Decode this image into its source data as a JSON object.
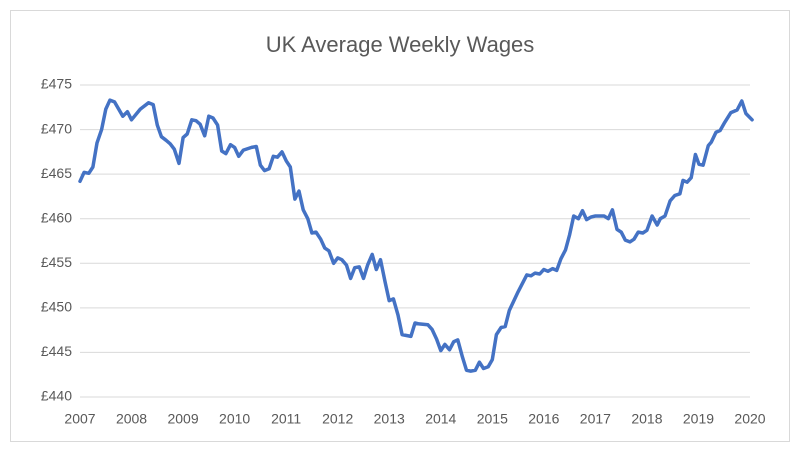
{
  "chart_data": {
    "type": "line",
    "title": "UK Average Weekly Wages",
    "x": [
      2007.0,
      2007.08,
      2007.17,
      2007.25,
      2007.33,
      2007.42,
      2007.5,
      2007.58,
      2007.67,
      2007.75,
      2007.83,
      2007.92,
      2008.0,
      2008.17,
      2008.33,
      2008.42,
      2008.5,
      2008.58,
      2008.67,
      2008.75,
      2008.83,
      2008.92,
      2009.0,
      2009.08,
      2009.17,
      2009.25,
      2009.33,
      2009.42,
      2009.5,
      2009.58,
      2009.67,
      2009.75,
      2009.83,
      2009.92,
      2010.0,
      2010.08,
      2010.17,
      2010.33,
      2010.42,
      2010.5,
      2010.58,
      2010.67,
      2010.75,
      2010.83,
      2010.92,
      2011.0,
      2011.08,
      2011.17,
      2011.25,
      2011.33,
      2011.42,
      2011.5,
      2011.58,
      2011.67,
      2011.75,
      2011.83,
      2011.92,
      2012.0,
      2012.08,
      2012.17,
      2012.25,
      2012.33,
      2012.42,
      2012.5,
      2012.58,
      2012.67,
      2012.75,
      2012.83,
      2012.92,
      2013.0,
      2013.08,
      2013.17,
      2013.25,
      2013.42,
      2013.5,
      2013.58,
      2013.75,
      2013.83,
      2013.92,
      2014.0,
      2014.08,
      2014.17,
      2014.25,
      2014.33,
      2014.42,
      2014.5,
      2014.58,
      2014.67,
      2014.75,
      2014.83,
      2014.92,
      2015.0,
      2015.08,
      2015.17,
      2015.25,
      2015.33,
      2015.5,
      2015.67,
      2015.75,
      2015.83,
      2015.92,
      2016.0,
      2016.08,
      2016.17,
      2016.25,
      2016.33,
      2016.42,
      2016.5,
      2016.58,
      2016.67,
      2016.75,
      2016.83,
      2016.92,
      2017.0,
      2017.17,
      2017.25,
      2017.33,
      2017.42,
      2017.5,
      2017.58,
      2017.67,
      2017.75,
      2017.83,
      2017.92,
      2018.0,
      2018.1,
      2018.2,
      2018.26,
      2018.35,
      2018.45,
      2018.54,
      2018.64,
      2018.7,
      2018.78,
      2018.86,
      2018.94,
      2019.01,
      2019.09,
      2019.19,
      2019.25,
      2019.34,
      2019.42,
      2019.51,
      2019.63,
      2019.75,
      2019.84,
      2019.92,
      2020.04
    ],
    "series": [
      {
        "name": "UK Average Weekly Wages",
        "color": "#4472c4",
        "values": [
          464.2,
          465.2,
          465.1,
          465.8,
          468.5,
          470.0,
          472.3,
          473.3,
          473.1,
          472.3,
          471.5,
          472.0,
          471.1,
          472.3,
          473.0,
          472.8,
          470.5,
          469.2,
          468.8,
          468.4,
          467.8,
          466.2,
          469.1,
          469.5,
          471.1,
          471.0,
          470.6,
          469.3,
          471.5,
          471.3,
          470.5,
          467.6,
          467.3,
          468.3,
          468.0,
          467.0,
          467.7,
          468.0,
          468.1,
          466.0,
          465.4,
          465.6,
          467.0,
          466.9,
          467.5,
          466.5,
          465.8,
          462.2,
          463.1,
          461.0,
          460.0,
          458.4,
          458.5,
          457.7,
          456.7,
          456.4,
          455.0,
          455.6,
          455.4,
          454.8,
          453.3,
          454.5,
          454.6,
          453.3,
          454.8,
          456.0,
          454.3,
          455.4,
          452.9,
          450.8,
          451.0,
          449.2,
          447.0,
          446.8,
          448.3,
          448.2,
          448.1,
          447.6,
          446.5,
          445.2,
          445.9,
          445.3,
          446.2,
          446.4,
          444.5,
          443.0,
          442.9,
          443.0,
          443.9,
          443.2,
          443.4,
          444.2,
          447.0,
          447.8,
          447.9,
          449.7,
          451.8,
          453.7,
          453.6,
          453.9,
          453.8,
          454.3,
          454.1,
          454.4,
          454.2,
          455.5,
          456.5,
          458.2,
          460.3,
          460.0,
          460.9,
          459.9,
          460.2,
          460.3,
          460.3,
          460.0,
          461.0,
          458.8,
          458.5,
          457.6,
          457.4,
          457.7,
          458.5,
          458.4,
          458.7,
          460.3,
          459.3,
          460.0,
          460.3,
          462.0,
          462.6,
          462.8,
          464.3,
          464.1,
          464.6,
          467.2,
          466.1,
          466.0,
          468.2,
          468.6,
          469.7,
          469.9,
          470.8,
          471.9,
          472.2,
          473.2,
          471.8,
          471.1
        ]
      }
    ],
    "xlim": [
      2007,
      2020
    ],
    "xticks": [
      2007,
      2008,
      2009,
      2010,
      2011,
      2012,
      2013,
      2014,
      2015,
      2016,
      2017,
      2018,
      2019,
      2020
    ],
    "ylim": [
      440,
      475
    ],
    "yticks": [
      {
        "value": 440,
        "label": "£440"
      },
      {
        "value": 445,
        "label": "£445"
      },
      {
        "value": 450,
        "label": "£450"
      },
      {
        "value": 455,
        "label": "£455"
      },
      {
        "value": 460,
        "label": "£460"
      },
      {
        "value": 465,
        "label": "£465"
      },
      {
        "value": 470,
        "label": "£470"
      },
      {
        "value": 475,
        "label": "£475"
      }
    ],
    "grid": true
  }
}
